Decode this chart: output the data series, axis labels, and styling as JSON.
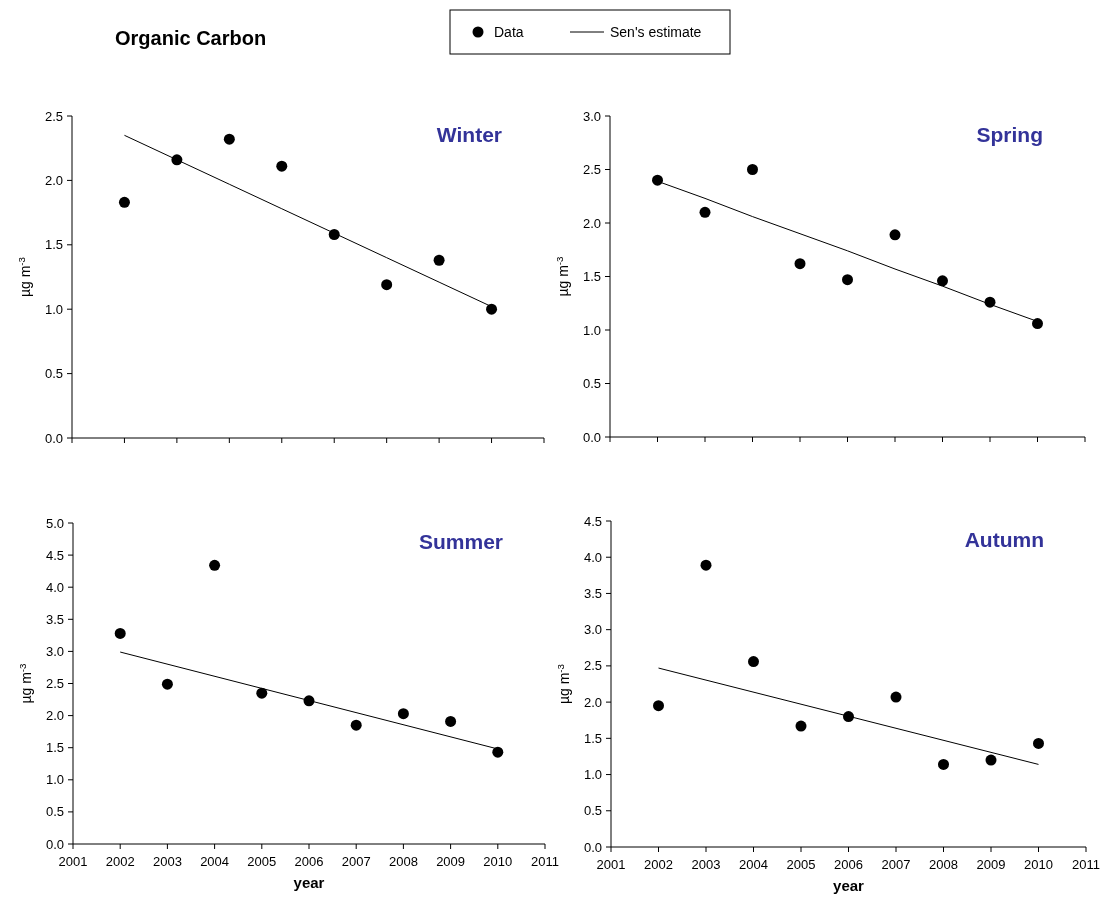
{
  "chart_data": [
    {
      "type": "scatter",
      "title": "Winter",
      "annotations": [
        "Organic Carbon"
      ],
      "ylabel": "µg m$^{-3}$",
      "legend": "top",
      "tick_labels": "y",
      "categories": [
        null,
        null,
        null,
        null,
        null,
        null,
        null,
        null
      ],
      "ylim": [
        0,
        2.5
      ],
      "yticks": [
        {
          "value": 0,
          "label": "0.0"
        },
        {
          "value": 0.5,
          "label": "0.5"
        },
        {
          "value": 1,
          "label": "1.0"
        },
        {
          "value": 1.5,
          "label": "1.5"
        },
        {
          "value": 2,
          "label": "2.0"
        },
        {
          "value": 2.5,
          "label": "2.5"
        }
      ],
      "series": [
        {
          "name": "Data",
          "type": "scatter",
          "marker": "circle",
          "color": "#000000",
          "values": [
            1.83,
            2.16,
            2.32,
            2.11,
            1.58,
            1.19,
            1.38,
            1.0
          ]
        },
        {
          "name": "Sen's estimate",
          "type": "line",
          "marker": "none",
          "color": "#000000",
          "values": [
            2.35,
            2.16,
            1.97,
            1.78,
            1.59,
            1.4,
            1.21,
            1.02
          ]
        }
      ]
    },
    {
      "type": "scatter",
      "title": "Spring",
      "ylabel": "µg m$^{-3}$",
      "tick_labels": "y",
      "categories": [
        null,
        null,
        null,
        null,
        null,
        null,
        null,
        null,
        null
      ],
      "ylim": [
        0,
        3
      ],
      "yticks": [
        {
          "value": 0,
          "label": "0.0"
        },
        {
          "value": 0.5,
          "label": "0.5"
        },
        {
          "value": 1,
          "label": "1.0"
        },
        {
          "value": 1.5,
          "label": "1.5"
        },
        {
          "value": 2,
          "label": "2.0"
        },
        {
          "value": 2.5,
          "label": "2.5"
        },
        {
          "value": 3,
          "label": "3.0"
        }
      ],
      "series": [
        {
          "type": "scatter",
          "marker": "circle",
          "color": "#000000",
          "values": [
            2.4,
            2.1,
            2.5,
            1.62,
            1.47,
            1.89,
            1.46,
            1.26,
            1.06
          ]
        },
        {
          "type": "line",
          "marker": "none",
          "color": "#000000",
          "values": [
            2.39,
            2.23,
            2.06,
            1.9,
            1.74,
            1.57,
            1.41,
            1.24,
            1.08
          ]
        }
      ]
    },
    {
      "type": "scatter",
      "title": "Summer",
      "xlabel": "year",
      "ylabel": "µg m$^{-3}$",
      "xlim": [
        2001,
        2011
      ],
      "xticks": [
        2001,
        2002,
        2003,
        2004,
        2005,
        2006,
        2007,
        2008,
        2009,
        2010,
        2011
      ],
      "ylim": [
        0,
        5
      ],
      "yticks": [
        {
          "value": 0,
          "label": "0.0"
        },
        {
          "value": 0.5,
          "label": "0.5"
        },
        {
          "value": 1,
          "label": "1.0"
        },
        {
          "value": 1.5,
          "label": "1.5"
        },
        {
          "value": 2,
          "label": "2.0"
        },
        {
          "value": 2.5,
          "label": "2.5"
        },
        {
          "value": 3,
          "label": "3.0"
        },
        {
          "value": 3.5,
          "label": "3.5"
        },
        {
          "value": 4,
          "label": "4.0"
        },
        {
          "value": 4.5,
          "label": "4.5"
        },
        {
          "value": 5,
          "label": "5.0"
        }
      ],
      "series": [
        {
          "type": "scatter",
          "marker": "circle",
          "color": "#000000",
          "x": [
            2002,
            2003,
            2004,
            2005,
            2006,
            2007,
            2008,
            2009,
            2010
          ],
          "values": [
            3.28,
            2.49,
            4.34,
            2.35,
            2.23,
            1.85,
            2.03,
            1.91,
            1.43
          ]
        },
        {
          "type": "line",
          "marker": "none",
          "color": "#000000",
          "x": [
            2002,
            2010
          ],
          "values": [
            2.99,
            1.48
          ]
        }
      ]
    },
    {
      "type": "scatter",
      "title": "Autumn",
      "xlabel": "year",
      "ylabel": "µg m$^{-3}$",
      "xlim": [
        2001,
        2011
      ],
      "xticks": [
        2001,
        2002,
        2003,
        2004,
        2005,
        2006,
        2007,
        2008,
        2009,
        2010,
        2011
      ],
      "ylim": [
        0,
        4.5
      ],
      "yticks": [
        {
          "value": 0,
          "label": "0.0"
        },
        {
          "value": 0.5,
          "label": "0.5"
        },
        {
          "value": 1,
          "label": "1.0"
        },
        {
          "value": 1.5,
          "label": "1.5"
        },
        {
          "value": 2,
          "label": "2.0"
        },
        {
          "value": 2.5,
          "label": "2.5"
        },
        {
          "value": 3,
          "label": "3.0"
        },
        {
          "value": 3.5,
          "label": "3.5"
        },
        {
          "value": 4,
          "label": "4.0"
        },
        {
          "value": 4.5,
          "label": "4.5"
        }
      ],
      "series": [
        {
          "type": "scatter",
          "marker": "circle",
          "color": "#000000",
          "x": [
            2002,
            2003,
            2004,
            2005,
            2006,
            2007,
            2008,
            2009,
            2010
          ],
          "values": [
            1.95,
            3.89,
            2.56,
            1.67,
            1.8,
            2.07,
            1.14,
            1.2,
            1.43
          ]
        },
        {
          "type": "line",
          "marker": "none",
          "color": "#000000",
          "x": [
            2002,
            2010
          ],
          "values": [
            2.47,
            1.14
          ]
        }
      ]
    }
  ]
}
